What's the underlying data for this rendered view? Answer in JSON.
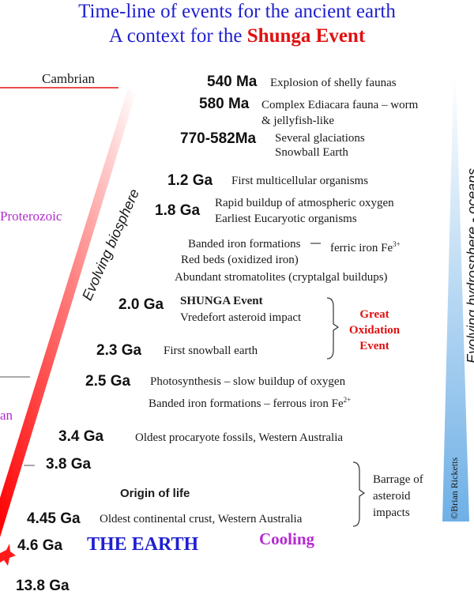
{
  "title": {
    "line1": "Time-line of events for the ancient earth",
    "line2_prefix": "A context for the ",
    "line2_highlight": "Shunga Event"
  },
  "eras": {
    "cambrian": "Cambrian",
    "proterozoic": "Proterozoic",
    "archean_fragment": "an"
  },
  "labels": {
    "evolving_biosphere": "Evolving biosphere",
    "evolving_hydrosphere": "Evolving hydrosphere - oceans",
    "great_oxidation": [
      "Great",
      "Oxidation",
      "Event"
    ],
    "barrage": [
      "Barrage of",
      "asteroid",
      "impacts"
    ],
    "copyright": "©Brian Ricketts",
    "origin_of_life": "Origin of life",
    "the_earth": "THE EARTH",
    "cooling": "Cooling"
  },
  "events": {
    "e540": {
      "age": "540 Ma",
      "desc": "Explosion of shelly faunas"
    },
    "e580": {
      "age": "580 Ma",
      "desc1": "Complex Ediacara fauna – worm",
      "desc2": "& jellyfish-like"
    },
    "e770": {
      "age": "770-582Ma",
      "desc1": "Several glaciations",
      "desc2": "Snowball Earth"
    },
    "e1200": {
      "age": "1.2 Ga",
      "desc": "First multicellular organisms"
    },
    "e1800": {
      "age": "1.8 Ga",
      "desc1": "Rapid buildup of atmospheric oxygen",
      "desc2": "Earliest Eucaryotic organisms"
    },
    "iron": {
      "line1": "Banded iron formations",
      "line1b": "ferric iron Fe",
      "line1_sup": "3+",
      "line2": "Red beds (oxidized iron)",
      "line3": "Abundant stromatolites (cryptalgal buildups)"
    },
    "e2000": {
      "age": "2.0 Ga",
      "desc1": "SHUNGA Event",
      "desc2": "Vredefort asteroid impact"
    },
    "e2300": {
      "age": "2.3 Ga",
      "desc": "First snowball earth"
    },
    "e2500": {
      "age": "2.5 Ga",
      "desc1": "Photosynthesis – slow buildup of oxygen",
      "desc2": "Banded iron formations –  ferrous iron Fe",
      "desc2_sup": "2+"
    },
    "e3400": {
      "age": "3.4 Ga",
      "desc": "Oldest procaryote fossils, Western Australia"
    },
    "e3800": {
      "age": "3.8 Ga"
    },
    "e4450": {
      "age": "4.45 Ga",
      "desc": "Oldest continental crust, Western Australia"
    },
    "e4600": {
      "age": "4.6 Ga"
    },
    "e13800": {
      "age": "13.8 Ga"
    }
  },
  "colors": {
    "title_blue": "#1f1fd0",
    "highlight_red": "#e01010",
    "era_purple": "#b42ad0",
    "hydrosphere_blue": "#7fb8e8"
  }
}
